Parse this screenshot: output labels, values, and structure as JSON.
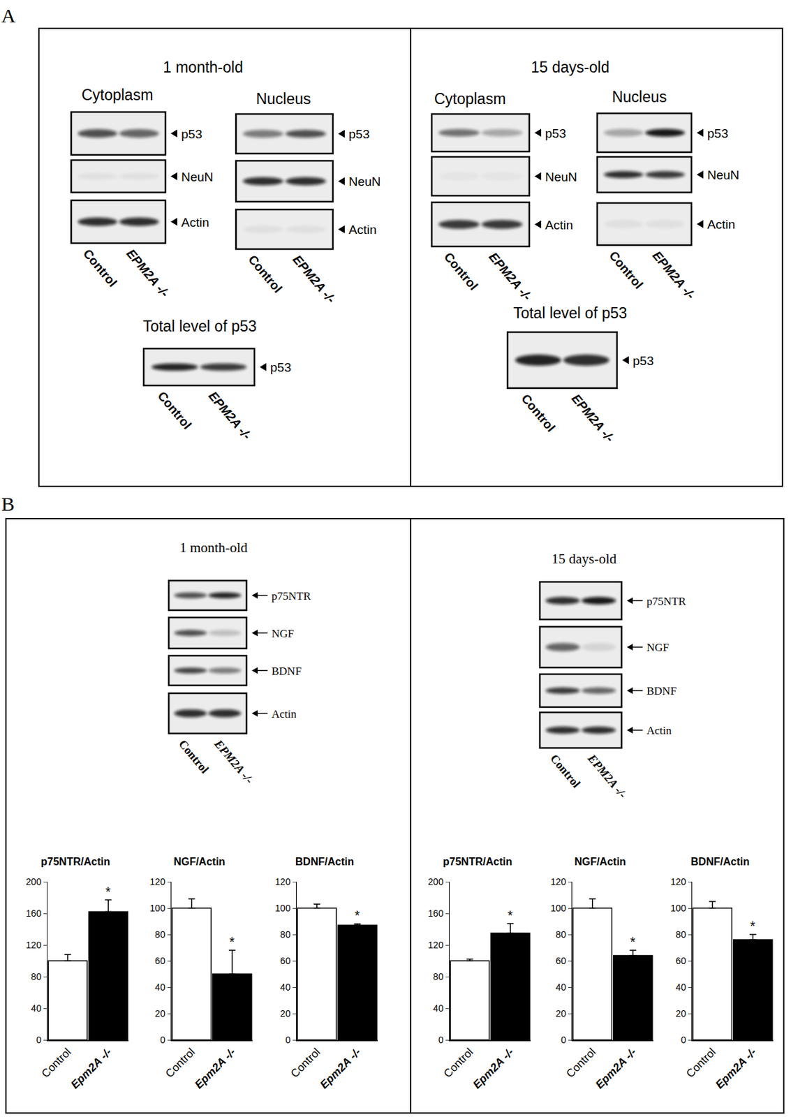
{
  "panel_labels": [
    "A",
    "B"
  ],
  "panel_a": [
    {
      "title": "1 month-old",
      "groups": [
        {
          "title": "Cytoplasm",
          "bands": [
            "p53",
            "NeuN",
            "Actin"
          ],
          "lanes": [
            "Control",
            "EPM2A -/-"
          ]
        },
        {
          "title": "Nucleus",
          "bands": [
            "p53",
            "NeuN",
            "Actin"
          ],
          "lanes": [
            "Control",
            "EPM2A -/-"
          ]
        },
        {
          "title": "Total level of p53",
          "bands": [
            "p53"
          ],
          "lanes": [
            "Control",
            "EPM2A -/-"
          ]
        }
      ]
    },
    {
      "title": "15 days-old",
      "groups": [
        {
          "title": "Cytoplasm",
          "bands": [
            "p53",
            "NeuN",
            "Actin"
          ],
          "lanes": [
            "Control",
            "EPM2A -/-"
          ]
        },
        {
          "title": "Nucleus",
          "bands": [
            "p53",
            "NeuN",
            "Actin"
          ],
          "lanes": [
            "Control",
            "EPM2A -/-"
          ]
        },
        {
          "title": "Total level of p53",
          "bands": [
            "p53"
          ],
          "lanes": [
            "Control",
            "EPM2A -/-"
          ]
        }
      ]
    }
  ],
  "panel_b": [
    {
      "title": "1 month-old",
      "bands": [
        "p75NTR",
        "NGF",
        "BDNF",
        "Actin"
      ],
      "lanes": [
        "Control",
        "EPM2A -/-"
      ]
    },
    {
      "title": "15 days-old",
      "bands": [
        "p75NTR",
        "NGF",
        "BDNF",
        "Actin"
      ],
      "lanes": [
        "Control",
        "EPM2A -/-"
      ]
    }
  ],
  "chart_data": [
    {
      "type": "bar",
      "title": "p75NTR/Actin",
      "categories": [
        "Control",
        "Epm2A -/-"
      ],
      "values": [
        100,
        162
      ],
      "errors": [
        8,
        15
      ],
      "colors": [
        "#ffffff",
        "#000000"
      ],
      "ylim": [
        0,
        200
      ],
      "yticks": [
        0,
        40,
        80,
        120,
        160,
        200
      ],
      "annotations": [
        {
          "category": "Epm2A -/-",
          "text": "*"
        }
      ]
    },
    {
      "type": "bar",
      "title": "NGF/Actin",
      "categories": [
        "Control",
        "Epm2A -/-"
      ],
      "values": [
        100,
        50
      ],
      "errors": [
        7,
        18
      ],
      "colors": [
        "#ffffff",
        "#000000"
      ],
      "ylim": [
        0,
        120
      ],
      "yticks": [
        0,
        20,
        40,
        60,
        80,
        100,
        120
      ],
      "annotations": [
        {
          "category": "Epm2A -/-",
          "text": "*"
        }
      ]
    },
    {
      "type": "bar",
      "title": "BDNF/Actin",
      "categories": [
        "Control",
        "Epm2A -/-"
      ],
      "values": [
        100,
        87
      ],
      "errors": [
        3,
        1
      ],
      "colors": [
        "#ffffff",
        "#000000"
      ],
      "ylim": [
        0,
        120
      ],
      "yticks": [
        0,
        20,
        40,
        60,
        80,
        100,
        120
      ],
      "annotations": [
        {
          "category": "Epm2A -/-",
          "text": "*"
        }
      ]
    },
    {
      "type": "bar",
      "title": "p75NTR/Actin",
      "categories": [
        "Control",
        "Epm2A -/-"
      ],
      "values": [
        100,
        135
      ],
      "errors": [
        2,
        12
      ],
      "colors": [
        "#ffffff",
        "#000000"
      ],
      "ylim": [
        0,
        200
      ],
      "yticks": [
        0,
        40,
        80,
        120,
        160,
        200
      ],
      "annotations": [
        {
          "category": "Epm2A -/-",
          "text": "*"
        }
      ]
    },
    {
      "type": "bar",
      "title": "NGF/Actin",
      "categories": [
        "Control",
        "Epm2A -/-"
      ],
      "values": [
        100,
        64
      ],
      "errors": [
        7,
        4
      ],
      "colors": [
        "#ffffff",
        "#000000"
      ],
      "ylim": [
        0,
        120
      ],
      "yticks": [
        0,
        20,
        40,
        60,
        80,
        100,
        120
      ],
      "annotations": [
        {
          "category": "Epm2A -/-",
          "text": "*"
        }
      ]
    },
    {
      "type": "bar",
      "title": "BDNF/Actin",
      "categories": [
        "Control",
        "Epm2A -/-"
      ],
      "values": [
        100,
        76
      ],
      "errors": [
        5,
        4
      ],
      "colors": [
        "#ffffff",
        "#000000"
      ],
      "ylim": [
        0,
        120
      ],
      "yticks": [
        0,
        20,
        40,
        60,
        80,
        100,
        120
      ],
      "annotations": [
        {
          "category": "Epm2A -/-",
          "text": "*"
        }
      ]
    }
  ]
}
